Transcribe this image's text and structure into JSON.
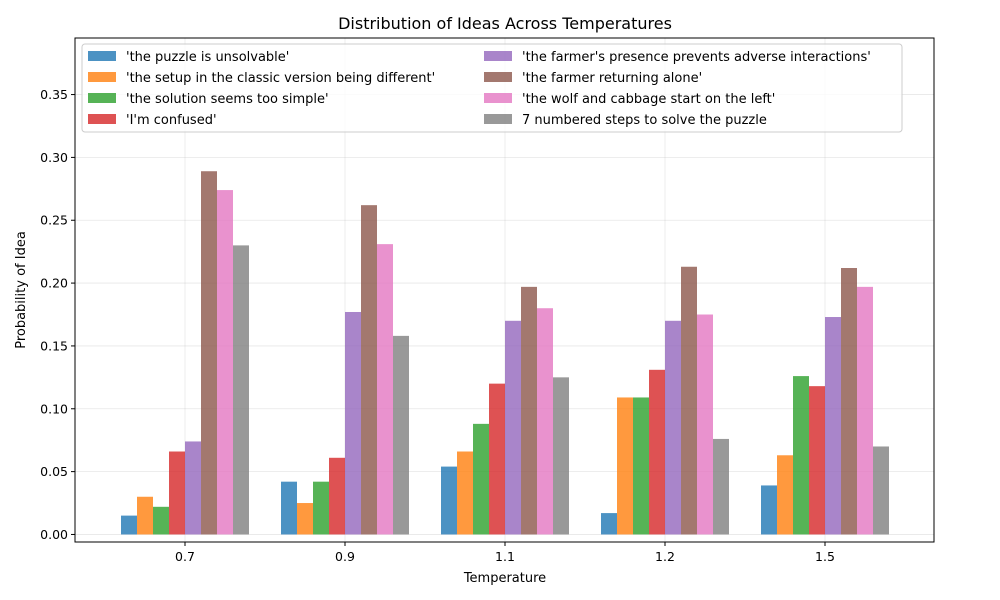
{
  "chart_data": {
    "type": "bar",
    "title": "Distribution of Ideas Across Temperatures",
    "xlabel": "Temperature",
    "ylabel": "Probability of Idea",
    "categories": [
      "0.7",
      "0.9",
      "1.1",
      "1.2",
      "1.5"
    ],
    "ylim": [
      -0.006,
      0.395
    ],
    "yticks": [
      "0.00",
      "0.05",
      "0.10",
      "0.15",
      "0.20",
      "0.25",
      "0.30",
      "0.35"
    ],
    "grid": true,
    "legend_position": "top",
    "legend_columns": 2,
    "series": [
      {
        "name": "'the puzzle is unsolvable'",
        "color": "#1f77b4",
        "values": [
          0.015,
          0.042,
          0.054,
          0.017,
          0.039
        ]
      },
      {
        "name": "'the setup in the classic version being different'",
        "color": "#ff7f0e",
        "values": [
          0.03,
          0.025,
          0.066,
          0.109,
          0.063
        ]
      },
      {
        "name": "'the solution seems too simple'",
        "color": "#2ca02c",
        "values": [
          0.022,
          0.042,
          0.088,
          0.109,
          0.126
        ]
      },
      {
        "name": "'I'm confused'",
        "color": "#d62728",
        "values": [
          0.066,
          0.061,
          0.12,
          0.131,
          0.118
        ]
      },
      {
        "name": "'the farmer's presence prevents adverse interactions'",
        "color": "#9467bd",
        "values": [
          0.074,
          0.177,
          0.17,
          0.17,
          0.173
        ]
      },
      {
        "name": "'the farmer returning alone'",
        "color": "#8c564b",
        "values": [
          0.289,
          0.262,
          0.197,
          0.213,
          0.212
        ]
      },
      {
        "name": "'the wolf and cabbage start on the left'",
        "color": "#e377c2",
        "values": [
          0.274,
          0.231,
          0.18,
          0.175,
          0.197
        ]
      },
      {
        "name": "7 numbered steps to solve the puzzle",
        "color": "#7f7f7f",
        "values": [
          0.23,
          0.158,
          0.125,
          0.076,
          0.07
        ]
      }
    ]
  }
}
